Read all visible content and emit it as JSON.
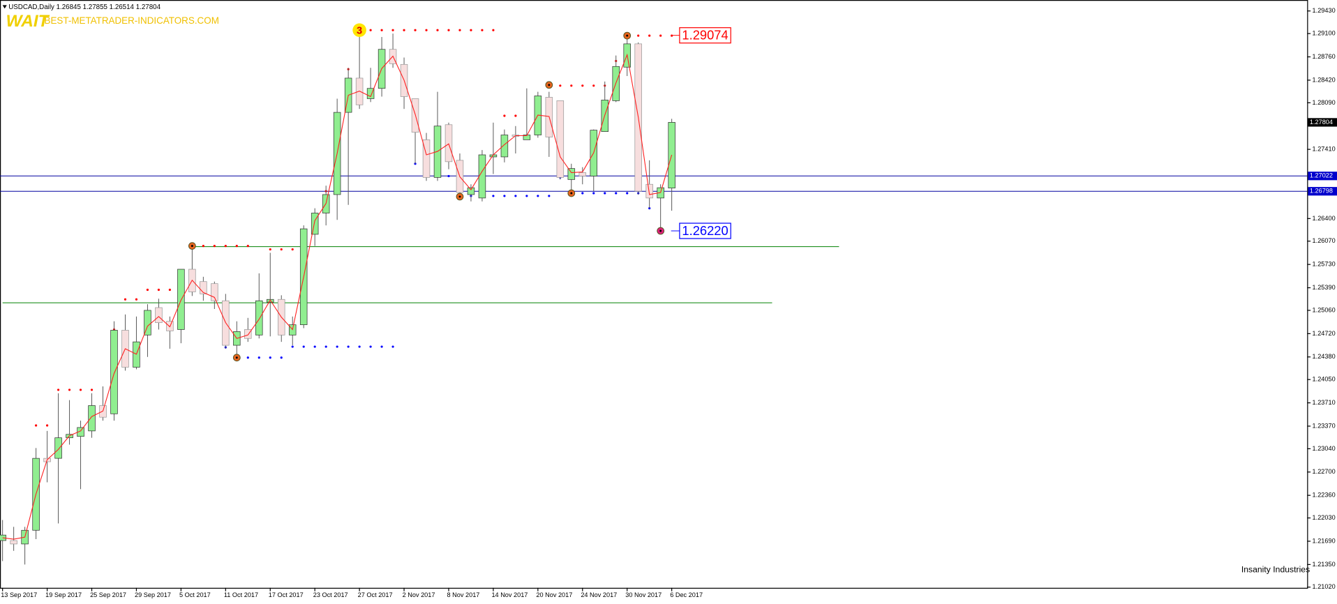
{
  "chart_data": {
    "type": "candlestick",
    "title": "USDCAD,Daily",
    "header_values": [
      1.26845,
      1.27855,
      1.26514,
      1.27804
    ],
    "watermark": "WAIT",
    "site": "BEST-METATRADER-INDICATORS.COM",
    "logo": "Insanity Industries",
    "categories": [
      "13 Sep 2017",
      null,
      null,
      null,
      "19 Sep 2017",
      null,
      null,
      null,
      "25 Sep 2017",
      null,
      null,
      null,
      "29 Sep 2017",
      null,
      null,
      null,
      "5 Oct 2017",
      null,
      null,
      null,
      "11 Oct 2017",
      null,
      null,
      null,
      "17 Oct 2017",
      null,
      null,
      null,
      "23 Oct 2017",
      null,
      null,
      null,
      "27 Oct 2017",
      null,
      null,
      null,
      "2 Nov 2017",
      null,
      null,
      null,
      "8 Nov 2017",
      null,
      null,
      null,
      "14 Nov 2017",
      null,
      null,
      null,
      "20 Nov 2017",
      null,
      null,
      null,
      "24 Nov 2017",
      null,
      null,
      null,
      "30 Nov 2017",
      null,
      null,
      null,
      "6 Dec 2017"
    ],
    "open": [
      1.217,
      1.217,
      1.2165,
      1.2185,
      1.229,
      1.229,
      1.232,
      1.2322,
      1.233,
      1.2367,
      1.2355,
      1.2477,
      1.2423,
      1.247,
      1.251,
      1.249,
      1.2478,
      1.2566,
      1.2548,
      1.2545,
      1.252,
      1.2455,
      1.2478,
      1.247,
      1.2518,
      1.2522,
      1.247,
      1.2485,
      1.2617,
      1.2648,
      1.2675,
      1.2795,
      1.2845,
      1.2815,
      1.283,
      1.2887,
      1.2865,
      1.2815,
      1.2755,
      1.27,
      1.2777,
      1.2725,
      1.2675,
      1.267,
      1.273,
      1.273,
      1.2762,
      1.2755,
      1.2762,
      1.2817,
      1.2812,
      1.2697,
      1.2707,
      1.2702,
      1.2767,
      1.2812,
      1.2861,
      1.2895,
      1.269,
      1.267,
      1.26845
    ],
    "high": [
      1.22,
      1.219,
      1.219,
      1.2305,
      1.233,
      1.2385,
      1.2375,
      1.2345,
      1.2385,
      1.2395,
      1.249,
      1.25,
      1.2497,
      1.2515,
      1.2523,
      1.2497,
      1.2566,
      1.26,
      1.2555,
      1.2548,
      1.253,
      1.249,
      1.2495,
      1.256,
      1.259,
      1.2528,
      1.2497,
      1.263,
      1.2655,
      1.2688,
      1.2815,
      1.286,
      1.2915,
      1.286,
      1.2905,
      1.291,
      1.2875,
      1.2815,
      1.2765,
      1.2825,
      1.278,
      1.2735,
      1.269,
      1.274,
      1.278,
      1.277,
      1.2775,
      1.283,
      1.2825,
      1.2825,
      1.2812,
      1.272,
      1.2715,
      1.277,
      1.284,
      1.2878,
      1.2907,
      1.2897,
      1.2725,
      1.269,
      1.27855
    ],
    "low": [
      1.214,
      1.2155,
      1.2135,
      1.2172,
      1.2255,
      1.2195,
      1.231,
      1.2245,
      1.232,
      1.2345,
      1.2345,
      1.2418,
      1.242,
      1.2438,
      1.2478,
      1.245,
      1.2458,
      1.2527,
      1.252,
      1.2508,
      1.245,
      1.2436,
      1.246,
      1.2465,
      1.2468,
      1.246,
      1.2455,
      1.248,
      1.26,
      1.263,
      1.2638,
      1.266,
      1.28,
      1.281,
      1.2818,
      1.286,
      1.28,
      1.272,
      1.2695,
      1.2695,
      1.2712,
      1.267,
      1.2665,
      1.2665,
      1.2705,
      1.2722,
      1.2735,
      1.2755,
      1.2758,
      1.273,
      1.2697,
      1.268,
      1.269,
      1.268,
      1.2767,
      1.281,
      1.2848,
      1.2675,
      1.2655,
      1.2622,
      1.26514
    ],
    "close": [
      1.2178,
      1.2165,
      1.2185,
      1.229,
      1.2285,
      1.232,
      1.2325,
      1.2335,
      1.2367,
      1.235,
      1.2477,
      1.2423,
      1.246,
      1.2506,
      1.2488,
      1.2476,
      1.2566,
      1.2533,
      1.253,
      1.252,
      1.2455,
      1.2475,
      1.2465,
      1.252,
      1.2522,
      1.247,
      1.2485,
      1.2625,
      1.2648,
      1.2675,
      1.2795,
      1.2845,
      1.2806,
      1.283,
      1.2887,
      1.2866,
      1.2818,
      1.2766,
      1.27,
      1.2775,
      1.2723,
      1.2678,
      1.2685,
      1.2733,
      1.2733,
      1.2762,
      1.276,
      1.2762,
      1.2819,
      1.2759,
      1.27,
      1.2713,
      1.2702,
      1.2769,
      1.2813,
      1.2862,
      1.2895,
      1.268,
      1.267,
      1.2685,
      1.27804
    ],
    "up_color": "#90ee90",
    "down_color": "#f7dede",
    "ma": {
      "color": "#ff2020",
      "values": [
        1.2174,
        1.2172,
        1.2175,
        1.2238,
        1.2288,
        1.2303,
        1.2323,
        1.233,
        1.2351,
        1.2359,
        1.2414,
        1.245,
        1.2442,
        1.2483,
        1.2497,
        1.2482,
        1.2521,
        1.255,
        1.2532,
        1.2525,
        1.2488,
        1.2465,
        1.247,
        1.2493,
        1.2521,
        1.2496,
        1.2478,
        1.2555,
        1.2637,
        1.2662,
        1.2735,
        1.282,
        1.2826,
        1.2818,
        1.2859,
        1.2877,
        1.2842,
        1.2792,
        1.2733,
        1.2738,
        1.2749,
        1.2701,
        1.2682,
        1.2709,
        1.2733,
        1.2748,
        1.2761,
        1.2761,
        1.2791,
        1.2789,
        1.273,
        1.2707,
        1.2708,
        1.2736,
        1.2791,
        1.2838,
        1.2879,
        1.2788,
        1.2675,
        1.2678,
        1.2733
      ]
    },
    "ylim": [
      1.2101,
      1.2959
    ],
    "yticks": [
      {
        "value": 1.2943,
        "label": "1.29430"
      },
      {
        "value": 1.291,
        "label": "1.29100"
      },
      {
        "value": 1.2876,
        "label": "1.28760"
      },
      {
        "value": 1.2842,
        "label": "1.28420"
      },
      {
        "value": 1.2809,
        "label": "1.28090"
      },
      {
        "value": 1.2741,
        "label": "1.27410"
      },
      {
        "value": 1.264,
        "label": "1.26400"
      },
      {
        "value": 1.2607,
        "label": "1.26070"
      },
      {
        "value": 1.2573,
        "label": "1.25730"
      },
      {
        "value": 1.2539,
        "label": "1.25390"
      },
      {
        "value": 1.2506,
        "label": "1.25060"
      },
      {
        "value": 1.2472,
        "label": "1.24720"
      },
      {
        "value": 1.2438,
        "label": "1.24380"
      },
      {
        "value": 1.2405,
        "label": "1.24050"
      },
      {
        "value": 1.2371,
        "label": "1.23710"
      },
      {
        "value": 1.2337,
        "label": "1.23370"
      },
      {
        "value": 1.2304,
        "label": "1.23040"
      },
      {
        "value": 1.227,
        "label": "1.22700"
      },
      {
        "value": 1.2236,
        "label": "1.22360"
      },
      {
        "value": 1.2203,
        "label": "1.22030"
      },
      {
        "value": 1.2169,
        "label": "1.21690"
      },
      {
        "value": 1.2135,
        "label": "1.21350"
      },
      {
        "value": 1.2102,
        "label": "1.21020"
      }
    ],
    "price_tags": [
      {
        "value": 1.27804,
        "color": "#000000"
      },
      {
        "value": 1.27022,
        "color": "#0000cc"
      },
      {
        "value": 1.26798,
        "color": "#0000cc"
      }
    ],
    "blue_lines": [
      1.27022,
      1.26798
    ],
    "green_lines": [
      {
        "value": 1.2599,
        "start": 17,
        "end": 75
      },
      {
        "value": 1.2517,
        "start": 0,
        "end": 69
      }
    ],
    "dotted_levels": [
      {
        "value": 1.2338,
        "start": 3,
        "end": 4,
        "color": "#ff0000"
      },
      {
        "value": 1.239,
        "start": 5,
        "end": 8,
        "color": "#ff0000"
      },
      {
        "value": 1.2478,
        "start": 10,
        "end": 10,
        "color": "#ff0000"
      },
      {
        "value": 1.2522,
        "start": 11,
        "end": 12,
        "color": "#ff0000"
      },
      {
        "value": 1.2536,
        "start": 13,
        "end": 15,
        "color": "#ff0000"
      },
      {
        "value": 1.26,
        "start": 18,
        "end": 22,
        "color": "#ff0000"
      },
      {
        "value": 1.2595,
        "start": 24,
        "end": 26,
        "color": "#ff0000"
      },
      {
        "value": 1.2565,
        "start": 27,
        "end": 27,
        "color": "#ff0000"
      },
      {
        "value": 1.268,
        "start": 29,
        "end": 29,
        "color": "#ff0000"
      },
      {
        "value": 1.2858,
        "start": 31,
        "end": 31,
        "color": "#ff0000"
      },
      {
        "value": 1.2915,
        "start": 33,
        "end": 44,
        "color": "#ff0000"
      },
      {
        "value": 1.279,
        "start": 45,
        "end": 46,
        "color": "#ff0000"
      },
      {
        "value": 1.2834,
        "start": 50,
        "end": 54,
        "color": "#ff0000"
      },
      {
        "value": 1.287,
        "start": 55,
        "end": 55,
        "color": "#ff0000"
      },
      {
        "value": 1.2907,
        "start": 57,
        "end": 60,
        "color": "#ff0000"
      },
      {
        "value": 1.2452,
        "start": 20,
        "end": 20,
        "color": "#0000ff"
      },
      {
        "value": 1.2437,
        "start": 22,
        "end": 25,
        "color": "#0000ff"
      },
      {
        "value": 1.2453,
        "start": 26,
        "end": 35,
        "color": "#0000ff"
      },
      {
        "value": 1.272,
        "start": 37,
        "end": 37,
        "color": "#0000ff"
      },
      {
        "value": 1.2702,
        "start": 38,
        "end": 40,
        "color": "#0000ff"
      },
      {
        "value": 1.2673,
        "start": 42,
        "end": 49,
        "color": "#0000ff"
      },
      {
        "value": 1.27,
        "start": 50,
        "end": 50,
        "color": "#0000ff"
      },
      {
        "value": 1.2677,
        "start": 52,
        "end": 58,
        "color": "#0000ff"
      },
      {
        "value": 1.2655,
        "start": 58,
        "end": 58,
        "color": "#0000ff"
      }
    ],
    "markers": [
      {
        "index": 17,
        "value": 1.26,
        "color": "#e8641e"
      },
      {
        "index": 21,
        "value": 1.2437,
        "color": "#e8641e"
      },
      {
        "index": 41,
        "value": 1.2672,
        "color": "#e8641e"
      },
      {
        "index": 49,
        "value": 1.2835,
        "color": "#e8641e"
      },
      {
        "index": 51,
        "value": 1.2677,
        "color": "#e8641e"
      },
      {
        "index": 56,
        "value": 1.2907,
        "color": "#e8641e"
      },
      {
        "index": 59,
        "value": 1.2622,
        "color": "#e0207a"
      }
    ],
    "count_marker": {
      "index": 32,
      "value": 1.2915,
      "count": 3
    },
    "callouts": [
      {
        "value": 1.29074,
        "color": "#ff0000"
      },
      {
        "value": 1.2622,
        "label": "1.26220",
        "color": "#0000ff"
      }
    ]
  }
}
